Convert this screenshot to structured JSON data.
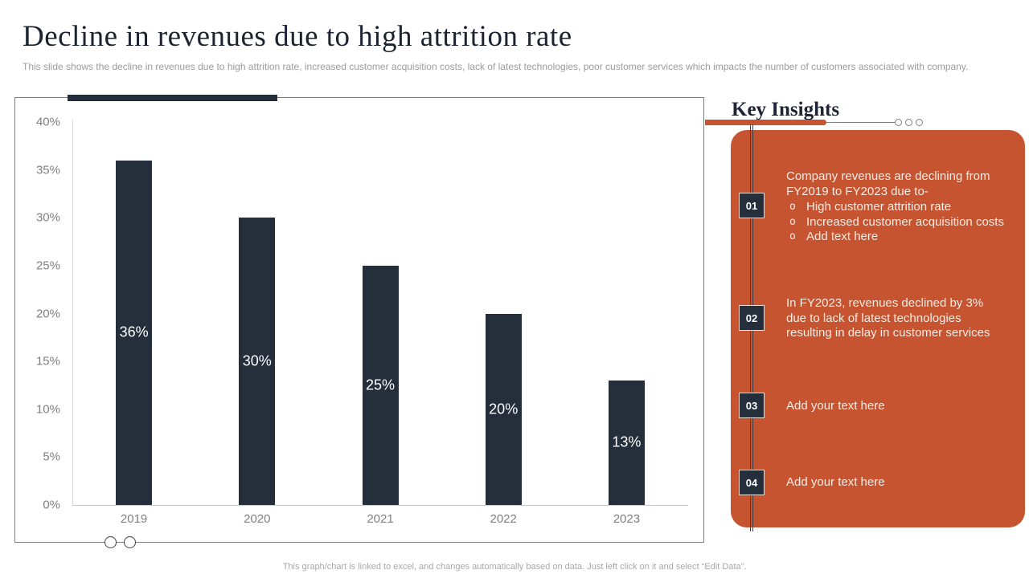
{
  "slide": {
    "title": "Decline in revenues due to high attrition rate",
    "subtitle": "This slide shows the decline in revenues due to high attrition rate,  increased customer acquisition costs, lack of latest technologies, poor customer services which impacts the number of customers associated with company.",
    "footer": "This graph/chart is linked to excel,  and changes automatically based on data. Just left click on it and select “Edit Data”."
  },
  "chart_data": {
    "type": "bar",
    "categories": [
      "2019",
      "2020",
      "2021",
      "2022",
      "2023"
    ],
    "values": [
      36,
      30,
      25,
      20,
      13
    ],
    "data_labels": [
      "36%",
      "30%",
      "25%",
      "20%",
      "13%"
    ],
    "title": "",
    "xlabel": "",
    "ylabel": "",
    "ylim": [
      0,
      40
    ],
    "ytick_step": 5,
    "ytick_suffix": "%",
    "grid": false,
    "legend": false,
    "bar_color": "#252E3B",
    "data_label_color": "#FFFFFF"
  },
  "insights": {
    "heading": "Key Insights",
    "items": [
      {
        "number": "01",
        "text": "Company revenues are declining from\nFY2019 to FY2023 due to-",
        "bullets": [
          "High customer attrition rate",
          "Increased customer acquisition costs",
          "Add text here"
        ]
      },
      {
        "number": "02",
        "text": "In FY2023, revenues declined by 3%\ndue to lack of latest technologies\nresulting in delay in customer services",
        "bullets": []
      },
      {
        "number": "03",
        "text": "Add your text here",
        "bullets": []
      },
      {
        "number": "04",
        "text": "Add your text here",
        "bullets": []
      }
    ]
  },
  "colors": {
    "accent_orange": "#C75430",
    "accent_navy": "#252E3B",
    "panel_text": "#F4EDE6"
  }
}
